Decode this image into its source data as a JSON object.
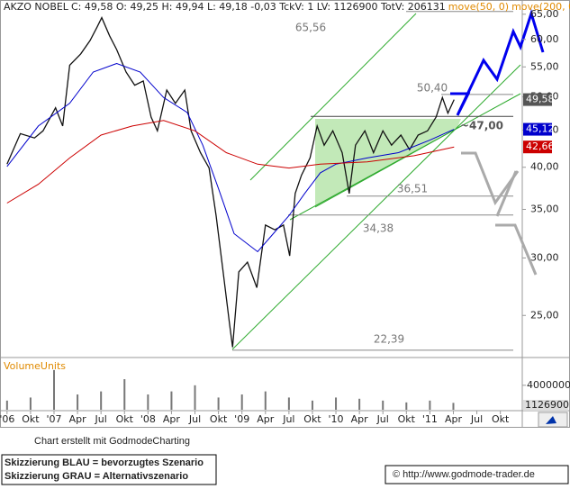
{
  "chart_data": {
    "type": "line",
    "header": "C: 49,58 O: 49,25 H: 49,94 L: 49,18 -0,03 TckV: 1 LV: 1126900 TotV: 206131",
    "log_y": true,
    "xlim": [
      5.1,
      71.8
    ],
    "ylim": [
      22,
      68
    ],
    "xticks": [
      {
        "value": 6,
        "label": "'06"
      },
      {
        "value": 9,
        "label": "Okt"
      },
      {
        "value": 12,
        "label": "'07"
      },
      {
        "value": 15,
        "label": "Apr"
      },
      {
        "value": 18,
        "label": "Jul"
      },
      {
        "value": 21,
        "label": "Okt"
      },
      {
        "value": 24,
        "label": "'08"
      },
      {
        "value": 27,
        "label": "Apr"
      },
      {
        "value": 30,
        "label": "Jul"
      },
      {
        "value": 33,
        "label": "Okt"
      },
      {
        "value": 36,
        "label": "'09"
      },
      {
        "value": 39,
        "label": "Apr"
      },
      {
        "value": 42,
        "label": "Jul"
      },
      {
        "value": 45,
        "label": "Okt"
      },
      {
        "value": 48,
        "label": "'10"
      },
      {
        "value": 51,
        "label": "Apr"
      },
      {
        "value": 54,
        "label": "Jul"
      },
      {
        "value": 57,
        "label": "Okt"
      },
      {
        "value": 60,
        "label": "'11"
      },
      {
        "value": 63,
        "label": "Apr"
      },
      {
        "value": 66,
        "label": "Jul"
      },
      {
        "value": 69,
        "label": "Okt"
      }
    ],
    "yticks": [
      {
        "value": 25,
        "label": "25,00"
      },
      {
        "value": 30,
        "label": "30,00"
      },
      {
        "value": 35,
        "label": "35,00"
      },
      {
        "value": 40,
        "label": "40,00"
      },
      {
        "value": 45,
        "label": "45,00"
      },
      {
        "value": 50,
        "label": "50,00"
      },
      {
        "value": 55,
        "label": "55,00"
      },
      {
        "value": 60,
        "label": "60,00"
      },
      {
        "value": 65,
        "label": "65,00"
      }
    ],
    "series": [
      {
        "name": "AKZO NOBEL",
        "color": "#111111",
        "last_label": "49,58",
        "x": [
          6,
          7.7,
          9.5,
          10.6,
          12.2,
          13.1,
          14,
          15.4,
          16.6,
          17.5,
          18.1,
          19.1,
          20,
          21.2,
          22.3,
          23.4,
          24.4,
          25.2,
          26.4,
          27.5,
          28.7,
          29.5,
          30.7,
          31.8,
          32.7,
          33.6,
          34.4,
          34.8,
          35.6,
          36.7,
          37.9,
          39,
          40.2,
          41.3,
          42.1,
          42.8,
          43.6,
          44.7,
          45.6,
          46.5,
          47.6,
          48.8,
          49.7,
          50.5,
          51.7,
          52.8,
          54,
          55.1,
          56.3,
          57.4,
          58.5,
          59.7,
          60.8,
          61.6,
          62.3,
          63.1
        ],
        "values": [
          40.4,
          44.5,
          43.9,
          44.9,
          48.3,
          45.6,
          55.3,
          57.3,
          59.8,
          62.4,
          64.3,
          60.7,
          58.1,
          54.1,
          51.9,
          52.6,
          46.9,
          44.9,
          51.1,
          49.0,
          51.1,
          44.9,
          41.9,
          39.9,
          34.3,
          28.7,
          24.4,
          22.6,
          28.7,
          29.6,
          27.3,
          33.3,
          32.8,
          33.3,
          30.2,
          36.8,
          39.0,
          41.2,
          45.6,
          42.9,
          44.9,
          41.9,
          36.8,
          42.9,
          44.9,
          41.9,
          44.9,
          42.9,
          44.3,
          42.3,
          44.3,
          44.9,
          46.9,
          49.9,
          47.5,
          49.58
        ]
      },
      {
        "name": "move(50, 0)",
        "color": "#0000cc",
        "last_label": "45,12",
        "x": [
          6,
          10,
          14,
          17,
          20,
          23,
          26,
          29,
          31,
          33,
          35,
          38,
          40,
          42,
          44,
          46,
          48,
          52,
          56,
          60,
          63.1
        ],
        "values": [
          40.1,
          45.6,
          49.0,
          54.1,
          55.6,
          54.1,
          49.9,
          47.6,
          42.9,
          37.4,
          32.4,
          30.6,
          32.4,
          34.3,
          36.8,
          39.3,
          40.4,
          41.2,
          41.9,
          43.6,
          45.12
        ]
      },
      {
        "name": "move(200, 0)",
        "color": "#cc0000",
        "last_label": "42,66",
        "x": [
          6,
          10,
          14,
          18,
          22,
          26,
          30,
          34,
          38,
          42,
          46,
          52,
          58,
          63.1
        ],
        "values": [
          35.7,
          37.9,
          41.2,
          44.3,
          45.6,
          46.4,
          44.9,
          41.9,
          40.4,
          39.9,
          40.4,
          40.7,
          41.5,
          42.66
        ]
      }
    ],
    "levels": [
      {
        "value": 65.56,
        "label": "65,56"
      },
      {
        "value": 50.4,
        "label": "50,40"
      },
      {
        "value": 47.0,
        "label": "~47,00"
      },
      {
        "value": 36.51,
        "label": "36,51"
      },
      {
        "value": 34.38,
        "label": "34,38"
      },
      {
        "value": 22.39,
        "label": "22,39"
      }
    ],
    "volume": {
      "name": "VolumeUnits",
      "color": "#777777",
      "ylim": [
        0,
        8100000
      ],
      "yticks": [
        4000000
      ],
      "x": [
        6,
        9,
        12,
        15,
        18,
        21,
        24,
        27,
        30,
        33,
        36,
        39,
        42,
        45,
        48,
        51,
        54,
        57,
        60,
        63
      ],
      "values": [
        1500000,
        2000000,
        6500000,
        2500000,
        3000000,
        5000000,
        2500000,
        3000000,
        4000000,
        2000000,
        2500000,
        3000000,
        2000000,
        1500000,
        2000000,
        1800000,
        1500000,
        1200000,
        1500000,
        1126900
      ]
    },
    "credit": "Chart erstellt mit GodmodeCharting",
    "legend_notes": [
      "Skizzierung BLAU = bevorzugtes Szenario",
      "Skizzierung GRAU = Alternativszenario"
    ],
    "copyright": "© http://www.godmode-trader.de"
  }
}
